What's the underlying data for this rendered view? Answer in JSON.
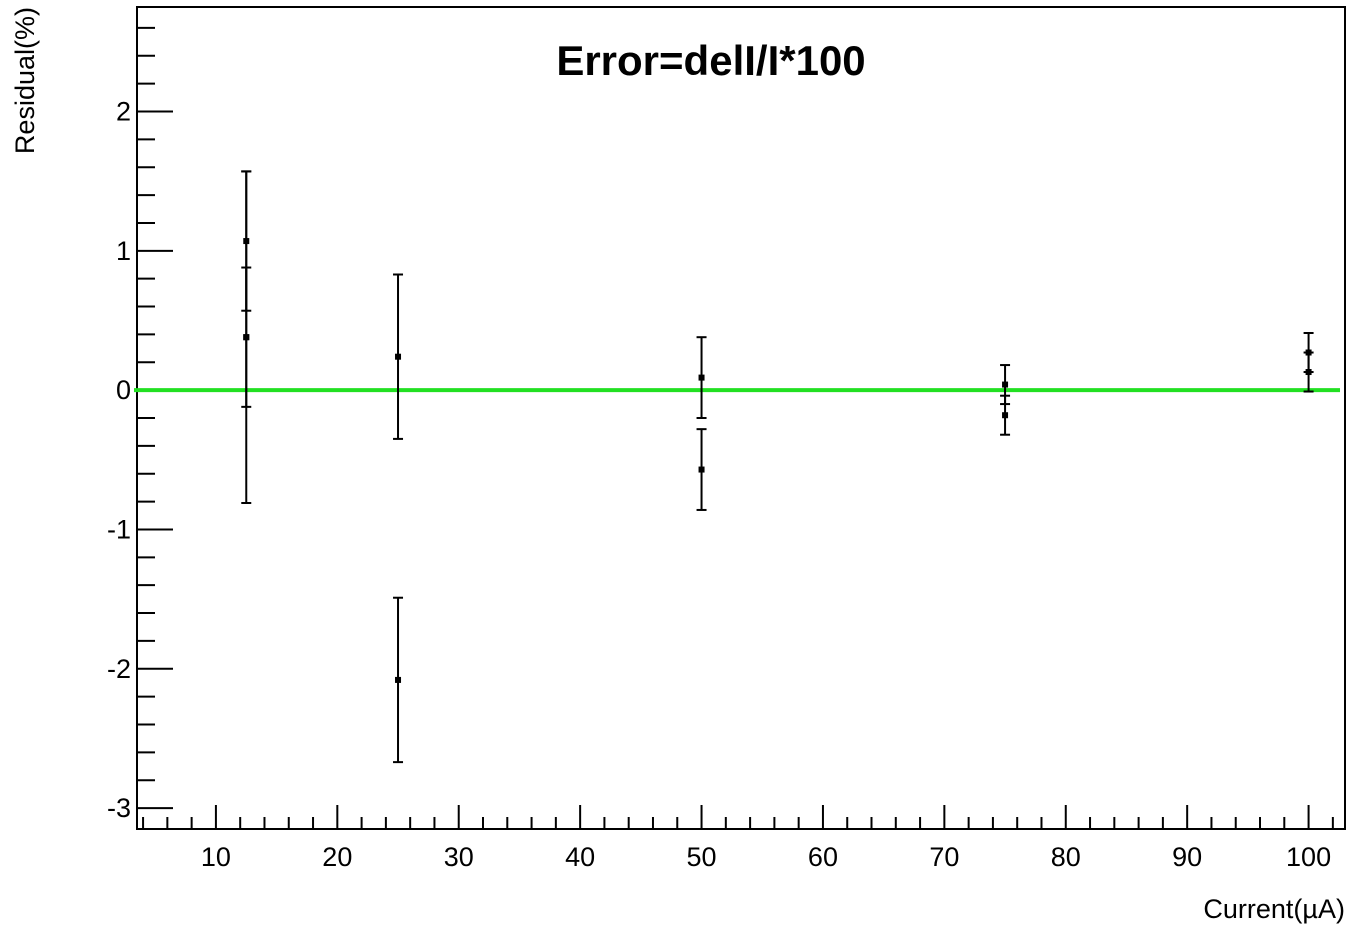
{
  "chart_data": {
    "type": "scatter",
    "title": "Error=delI/I*100",
    "xlabel": "Current(µA)",
    "ylabel": "Residual(%)",
    "xlim": [
      3.5,
      103
    ],
    "ylim": [
      -3.15,
      2.75
    ],
    "x_ticks": [
      10,
      20,
      30,
      40,
      50,
      60,
      70,
      80,
      90,
      100
    ],
    "y_ticks": [
      -3,
      -2,
      -1,
      0,
      1,
      2
    ],
    "grid": false,
    "legend": "none",
    "reference_line": {
      "y": 0,
      "color": "#22e022"
    },
    "marker_color": "#000000",
    "series": [
      {
        "points": [
          {
            "x": 12.5,
            "y": 1.07,
            "err": 0.5
          },
          {
            "x": 12.5,
            "y": 0.38,
            "err": 0.5
          },
          {
            "x": 12.5,
            "y": 0.38,
            "err": 1.19
          },
          {
            "x": 25,
            "y": 0.24,
            "err": 0.59
          },
          {
            "x": 25,
            "y": -2.08,
            "err": 0.59
          },
          {
            "x": 50,
            "y": 0.09,
            "err": 0.29
          },
          {
            "x": 50,
            "y": -0.57,
            "err": 0.29
          },
          {
            "x": 75,
            "y": 0.04,
            "err": 0.14
          },
          {
            "x": 75,
            "y": -0.18,
            "err": 0.14
          },
          {
            "x": 100,
            "y": 0.27,
            "err": 0.14
          },
          {
            "x": 100,
            "y": 0.13,
            "err": 0.14
          }
        ]
      }
    ]
  }
}
